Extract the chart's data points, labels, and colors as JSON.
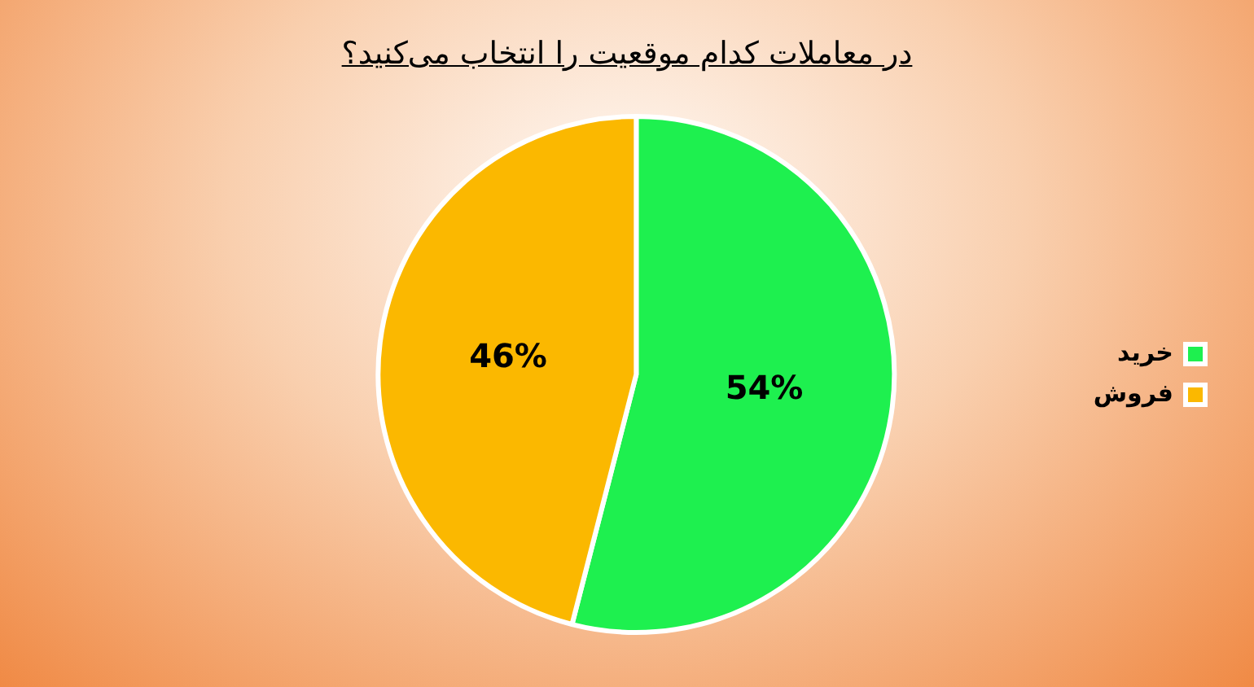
{
  "chart_data": {
    "type": "pie",
    "title": "در معاملات کدام موقعیت را انتخاب می‌کنید؟",
    "categories": [
      "خرید",
      "فروش"
    ],
    "values": [
      54,
      46
    ],
    "colors": [
      "#1ef04f",
      "#fbb800"
    ],
    "value_labels": [
      "54%",
      "46%"
    ],
    "legend": "right"
  }
}
